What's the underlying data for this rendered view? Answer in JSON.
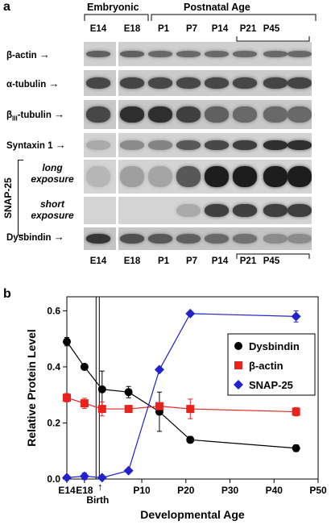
{
  "panel_a": {
    "letter": "a",
    "group_embryonic": "Embryonic",
    "group_postnatal": "Postnatal Age",
    "lanes_top": [
      "E14",
      "E18",
      "P1",
      "P7",
      "P14",
      "P21"
    ],
    "p45_label": "P45",
    "lanes_bottom": [
      "E14",
      "E18",
      "P1",
      "P7",
      "P14",
      "P21"
    ],
    "rows": [
      {
        "label": "β-actin",
        "arrow": "→"
      },
      {
        "label": "α-tubulin",
        "arrow": "→"
      },
      {
        "label": "β",
        "sub": "III",
        "suffix": "-tubulin",
        "arrow": "→"
      },
      {
        "label": "Syntaxin 1",
        "arrow": "→"
      },
      {
        "label": "long exposure"
      },
      {
        "label": "short exposure"
      },
      {
        "label": "Dysbindin",
        "arrow": "→"
      }
    ],
    "snap_label": "SNAP-25",
    "long_line1": "long",
    "long_line2": "exposure",
    "short_line1": "short",
    "short_line2": "exposure"
  },
  "panel_b": {
    "letter": "b",
    "birth_label": "Birth"
  },
  "chart_data": {
    "type": "line",
    "xlabel": "Developmental Age",
    "ylabel": "Relative Protein Level",
    "ylim": [
      0,
      0.65
    ],
    "yticks": [
      "0.0",
      "0.2",
      "0.4",
      "0.6"
    ],
    "yticks_values": [
      0,
      0.2,
      0.4,
      0.6
    ],
    "xticks": [
      "E14",
      "E18",
      "P10",
      "P20",
      "P30",
      "P40",
      "P50"
    ],
    "legend_position": "top-right",
    "series": [
      {
        "name": "Dysbindin",
        "color": "#000000",
        "marker": "circle",
        "x": [
          "E14",
          "E18",
          "P1",
          "P7",
          "P14",
          "P21",
          "P45"
        ],
        "values": [
          0.49,
          0.4,
          0.32,
          0.31,
          0.24,
          0.14,
          0.11
        ],
        "errors": [
          0.015,
          0.01,
          0.065,
          0.02,
          0.07,
          0.012,
          0.012
        ]
      },
      {
        "name": "β-actin",
        "color": "#e8231e",
        "marker": "square",
        "x": [
          "E14",
          "E18",
          "P1",
          "P7",
          "P14",
          "P21",
          "P45"
        ],
        "values": [
          0.29,
          0.27,
          0.25,
          0.25,
          0.26,
          0.25,
          0.24
        ],
        "errors": [
          0.015,
          0.018,
          0.025,
          0.01,
          0.012,
          0.035,
          0.015
        ]
      },
      {
        "name": "SNAP-25",
        "color": "#2222cc",
        "marker": "diamond",
        "x": [
          "E14",
          "E18",
          "P1",
          "P7",
          "P14",
          "P21",
          "P45"
        ],
        "values": [
          0.005,
          0.01,
          0.005,
          0.03,
          0.39,
          0.59,
          0.58
        ],
        "errors": [
          0,
          0.012,
          0,
          0,
          0,
          0,
          0.02
        ]
      }
    ]
  }
}
